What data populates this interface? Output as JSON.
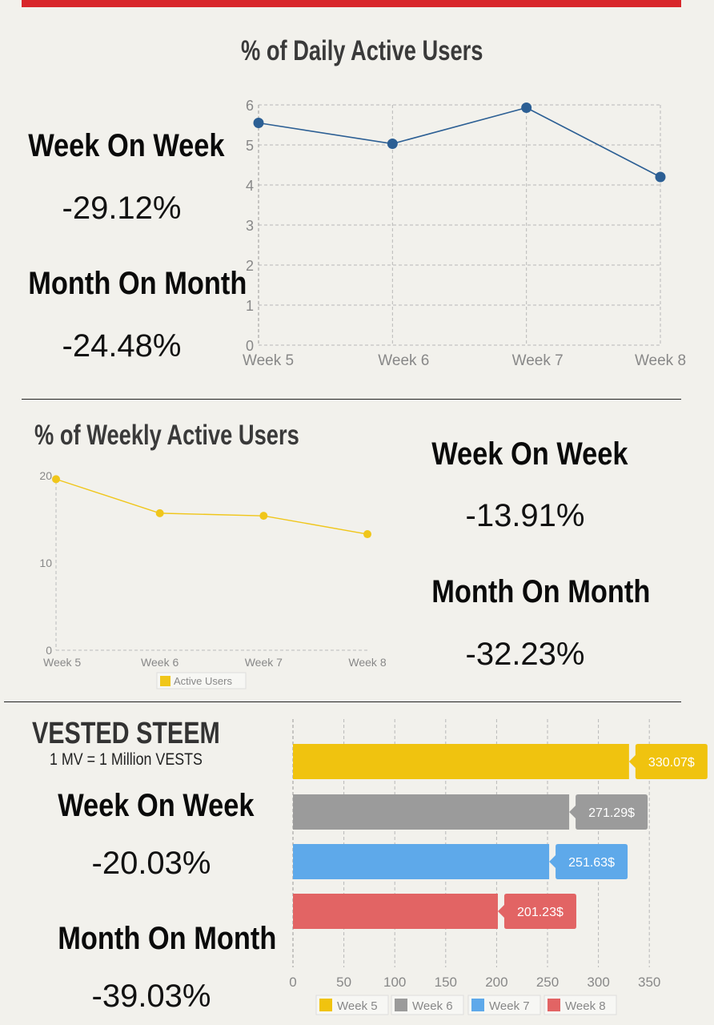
{
  "sections": {
    "dau": {
      "title": "% of Daily Active Users",
      "wow_label": "Week On Week",
      "wow_value": "-29.12%",
      "mom_label": "Month On Month",
      "mom_value": "-24.48%"
    },
    "wau": {
      "title": "% of Weekly Active Users",
      "wow_label": "Week On Week",
      "wow_value": "-13.91%",
      "mom_label": "Month On Month",
      "mom_value": "-32.23%"
    },
    "vested": {
      "title": "VESTED STEEM",
      "subtitle": "1 MV = 1 Million VESTS",
      "wow_label": "Week On Week",
      "wow_value": "-20.03%",
      "mom_label": "Month On Month",
      "mom_value": "-39.03%"
    }
  },
  "colors": {
    "red_bar": "#d8272b",
    "line_blue": "#2c5f94",
    "line_yellow": "#f0c61a",
    "grid": "#b8b8b8",
    "tick_text": "#888888"
  },
  "chart_data": [
    {
      "type": "line",
      "title": "% of Daily Active Users",
      "categories": [
        "Week 5",
        "Week 6",
        "Week 7",
        "Week 8"
      ],
      "values": [
        5.55,
        5.03,
        5.93,
        4.2
      ],
      "ylim": [
        0,
        6
      ],
      "yticks": [
        "0",
        "1",
        "2",
        "3",
        "4",
        "5",
        "6"
      ],
      "grid": true,
      "color": "#2c5f94"
    },
    {
      "type": "line",
      "title": "% of Weekly Active Users",
      "categories": [
        "Week 5",
        "Week 6",
        "Week 7",
        "Week 8"
      ],
      "series": [
        {
          "name": "Active Users",
          "values": [
            19.6,
            15.7,
            15.4,
            13.3
          ]
        }
      ],
      "ylim": [
        0,
        20
      ],
      "yticks": [
        "0",
        "10",
        "20"
      ],
      "legend": "bottom",
      "color": "#f0c61a"
    },
    {
      "type": "bar",
      "orientation": "horizontal",
      "title": "VESTED STEEM",
      "categories": [
        "Week 5",
        "Week 6",
        "Week 7",
        "Week 8"
      ],
      "values": [
        330.07,
        271.29,
        251.63,
        201.23
      ],
      "data_labels": [
        "330.07$",
        "271.29$",
        "251.63$",
        "201.23$"
      ],
      "colors": [
        "#f0c30f",
        "#9b9b9b",
        "#5ea9ea",
        "#e26464"
      ],
      "xlim": [
        0,
        350
      ],
      "xticks": [
        "0",
        "50",
        "100",
        "150",
        "200",
        "250",
        "300",
        "350"
      ],
      "legend": "bottom"
    }
  ]
}
